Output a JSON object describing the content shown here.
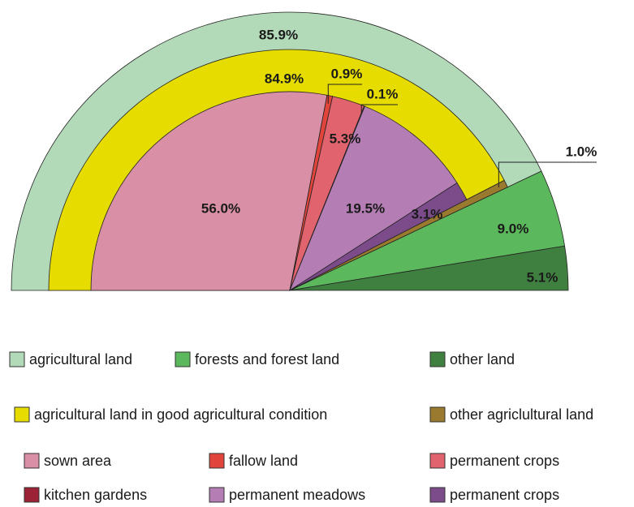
{
  "chart_data": {
    "type": "pie",
    "half": true,
    "series": [
      {
        "categories": [
          "agricultural land",
          "forests and forest land",
          "other land"
        ],
        "values": [
          85.9,
          9.0,
          5.1
        ],
        "value_labels": [
          "85.9%",
          "9.0%",
          "5.1%"
        ],
        "colors": [
          "#b3dab8",
          "#5cb85c",
          "#3f7f3f"
        ]
      },
      {
        "categories": [
          "agricultural land in good agricultural condition",
          "other agriclultural land"
        ],
        "values": [
          84.9,
          1.0
        ],
        "value_labels": [
          "84.9%",
          "1.0%"
        ],
        "colors": [
          "#e6dc00",
          "#9a7a2e"
        ]
      },
      {
        "categories": [
          "sown area",
          "fallow land",
          "permanent crops",
          "kitchen gardens",
          "permanent meadows",
          "permanent crops"
        ],
        "values": [
          56.0,
          0.9,
          5.3,
          0.1,
          19.5,
          3.1
        ],
        "value_labels": [
          "56.0%",
          "0.9%",
          "5.3%",
          "0.1%",
          "19.5%",
          "3.1%"
        ],
        "colors": [
          "#d98fa5",
          "#e0443a",
          "#e0636e",
          "#9b2335",
          "#b47db4",
          "#7b4b8a"
        ]
      }
    ]
  }
}
